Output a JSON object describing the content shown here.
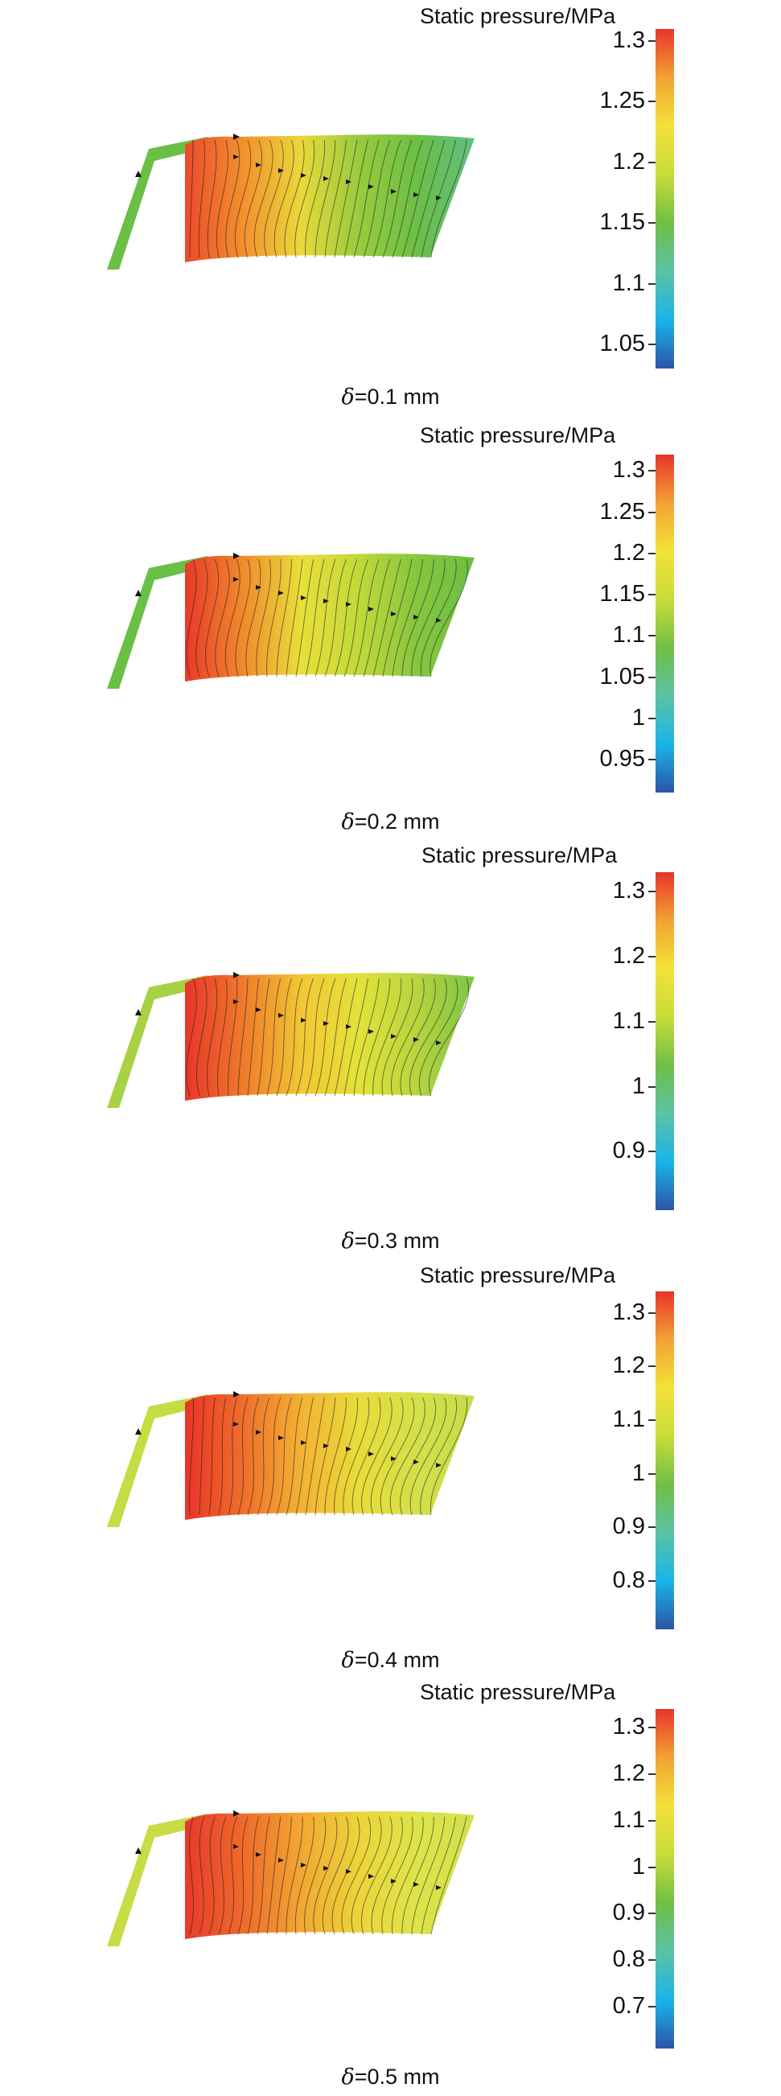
{
  "colorbar_title": "Static pressure/MPa",
  "delta_symbol": "δ",
  "panels": [
    {
      "caption_value": "=0.1 mm",
      "ticks": [
        "1.3",
        "1.25",
        "1.2",
        "1.15",
        "1.1",
        "1.05"
      ],
      "tick_values": [
        1.3,
        1.25,
        1.2,
        1.15,
        1.1,
        1.05
      ],
      "range": [
        1.03,
        1.31
      ],
      "inlet_color": "#6abf45",
      "field_colors": [
        "#ea4a2c",
        "#f3902e",
        "#e9d83a",
        "#9acb3e",
        "#6cbf47",
        "#5ebf7e"
      ]
    },
    {
      "caption_value": "=0.2 mm",
      "ticks": [
        "1.3",
        "1.25",
        "1.2",
        "1.15",
        "1.1",
        "1.05",
        "1",
        "0.95"
      ],
      "tick_values": [
        1.3,
        1.25,
        1.2,
        1.15,
        1.1,
        1.05,
        1,
        0.95
      ],
      "range": [
        0.91,
        1.32
      ],
      "inlet_color": "#6abf45",
      "field_colors": [
        "#e83a2a",
        "#f08a2c",
        "#e9df3a",
        "#c2d83a",
        "#86c63f",
        "#6cbf45"
      ]
    },
    {
      "caption_value": "=0.3 mm",
      "ticks": [
        "1.3",
        "1.2",
        "1.1",
        "1",
        "0.9"
      ],
      "tick_values": [
        1.3,
        1.2,
        1.1,
        1,
        0.9
      ],
      "range": [
        0.81,
        1.33
      ],
      "inlet_color": "#a6d243",
      "field_colors": [
        "#e8352a",
        "#ef7a2b",
        "#f2c734",
        "#e2e23a",
        "#b8d43e",
        "#7ac546"
      ]
    },
    {
      "caption_value": "=0.4 mm",
      "ticks": [
        "1.3",
        "1.2",
        "1.1",
        "1",
        "0.9",
        "0.8"
      ],
      "tick_values": [
        1.3,
        1.2,
        1.1,
        1,
        0.9,
        0.8
      ],
      "range": [
        0.71,
        1.34
      ],
      "inlet_color": "#c5dc43",
      "field_colors": [
        "#e8352a",
        "#ef6e2b",
        "#f3b233",
        "#e9dc3a",
        "#d3e04a",
        "#c6dc4a"
      ]
    },
    {
      "caption_value": "=0.5 mm",
      "ticks": [
        "1.3",
        "1.2",
        "1.1",
        "1",
        "0.9",
        "0.8",
        "0.7"
      ],
      "tick_values": [
        1.3,
        1.2,
        1.1,
        1,
        0.9,
        0.8,
        0.7
      ],
      "range": [
        0.61,
        1.34
      ],
      "inlet_color": "#c8dc45",
      "field_colors": [
        "#e83a2a",
        "#ee6a2c",
        "#f2a733",
        "#ebd53a",
        "#dde44a",
        "#d2e04d"
      ]
    }
  ],
  "colorbar_stops": [
    "#2b55a6",
    "#1ab4e8",
    "#5bc2a4",
    "#6fbf45",
    "#c9dc3a",
    "#f2e23a",
    "#f2a233",
    "#e8332a"
  ]
}
